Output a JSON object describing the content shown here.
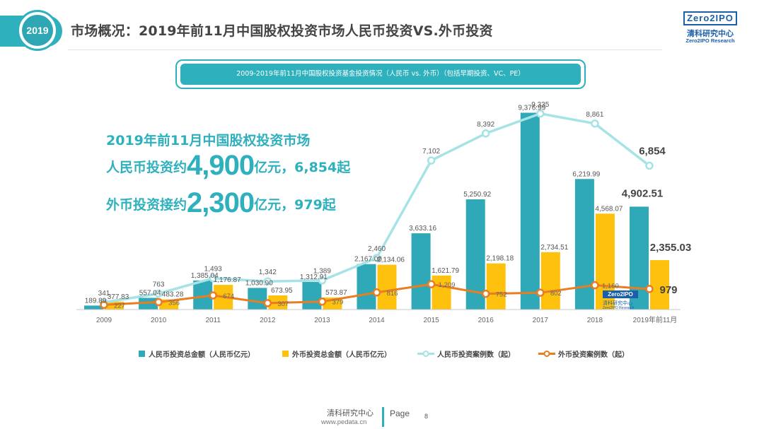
{
  "header": {
    "year_badge": "2019",
    "title": "市场概况：2019年前11月中国股权投资市场人民币投资VS.外币投资",
    "logo_box": "Zero2IPO",
    "logo_cn": "清科研究中心",
    "logo_en": "Zero2IPO Research"
  },
  "highlights": {
    "line1": "2019年前11月中国股权投资市场",
    "line2_prefix": "人民币投资约",
    "line2_big": "4,900",
    "line2_suffix": "亿元，6,854起",
    "line3_prefix": "外币投资接约",
    "line3_big": "2,300",
    "line3_suffix": "亿元，979起"
  },
  "watermark": {
    "box": "Zero2IPO",
    "cn": "清科研究中心",
    "en": "Zero2IPO Research"
  },
  "footer": {
    "org": "清科研究中心",
    "url": "www.pedata.cn",
    "page_label": "Page",
    "page_number": "8"
  },
  "colors": {
    "rmb_amount": "#2fa8b8",
    "fx_amount": "#fec10e",
    "rmb_cases": "#a6e3e6",
    "fx_cases": "#e87d22"
  },
  "chart_data": {
    "type": "bar",
    "title": "2009-2019年前11月中国股权投资基金投资情况（人民币 vs. 外币）（包括早期投资、VC、PE）",
    "categories": [
      "2009",
      "2010",
      "2011",
      "2012",
      "2013",
      "2014",
      "2015",
      "2016",
      "2017",
      "2018",
      "2019年前11月"
    ],
    "series": [
      {
        "name": "人民币投资总金额（人民币亿元）",
        "kind": "bar",
        "values": [
          189.89,
          557.04,
          1385.04,
          1030.9,
          1312.91,
          2167.0,
          3633.16,
          5250.92,
          9376.99,
          6219.99,
          4902.51
        ],
        "labels": [
          "189.89",
          "557.04",
          "1,385.04",
          "1,030.90",
          "1,312.91",
          "2,167.00",
          "3,633.16",
          "5,250.92",
          "9,376.99",
          "6,219.99",
          "4,902.51"
        ]
      },
      {
        "name": "外币投资总金额（人民币亿元）",
        "kind": "bar",
        "values": [
          377.83,
          483.28,
          1176.87,
          673.95,
          573.87,
          2134.06,
          1621.79,
          2198.18,
          2734.51,
          4568.07,
          2355.03
        ],
        "labels": [
          "377.83",
          "483.28",
          "1,176.87",
          "673.95",
          "573.87",
          "2,134.06",
          "1,621.79",
          "2,198.18",
          "2,734.51",
          "4,568.07",
          "2,355.03"
        ]
      },
      {
        "name": "人民币投资案例数（起）",
        "kind": "line",
        "values": [
          341,
          763,
          1493,
          1342,
          1389,
          2460,
          7102,
          8392,
          9335,
          8861,
          6854
        ],
        "labels": [
          "341",
          "763",
          "1,493",
          "1,342",
          "1,389",
          "2,460",
          "7,102",
          "8,392",
          "9,335",
          "8,861",
          "6,854"
        ]
      },
      {
        "name": "外币投资案例数（起）",
        "kind": "line",
        "values": [
          227,
          356,
          674,
          307,
          379,
          816,
          1209,
          752,
          802,
          1160,
          979
        ],
        "labels": [
          "227",
          "356",
          "674",
          "307",
          "379",
          "816",
          "1,209",
          "752",
          "802",
          "1,160",
          "979"
        ]
      }
    ],
    "ylim": [
      0,
      10000
    ],
    "grid": false,
    "legend": "bottom"
  }
}
